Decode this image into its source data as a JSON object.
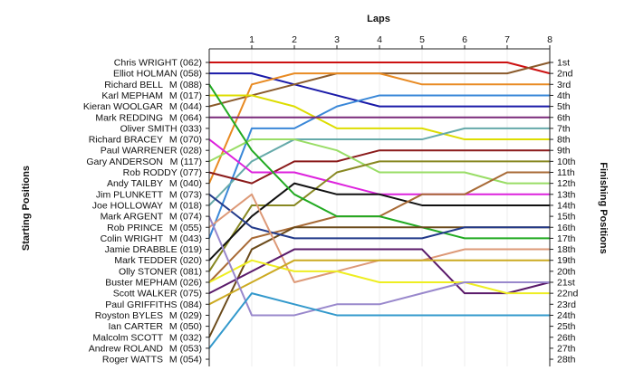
{
  "chart_data": {
    "type": "line",
    "title": "Laps",
    "xlabel": "Laps",
    "ylabel_left": "Starting Positions",
    "ylabel_right": "Finishing Positions",
    "x": [
      0,
      1,
      2,
      3,
      4,
      5,
      6,
      7,
      8
    ],
    "x_tick_labels": [
      "1",
      "2",
      "3",
      "4",
      "5",
      "6",
      "7",
      "8"
    ],
    "starting_labels": [
      [
        "Chris WRIGHT (062)",
        ""
      ],
      [
        "Elliot HOLMAN (058)",
        ""
      ],
      [
        "Richard BELL",
        "M (088)"
      ],
      [
        "Karl MEPHAM",
        "M (017)"
      ],
      [
        "Kieran WOOLGAR",
        "M (044)"
      ],
      [
        "Mark REDDING",
        "M (064)"
      ],
      [
        "Oliver SMITH (033)",
        ""
      ],
      [
        "Richard BRACEY",
        "M (070)"
      ],
      [
        "Paul WARRENER (028)",
        ""
      ],
      [
        "Gary ANDERSON",
        "M (117)"
      ],
      [
        "Rob RODDY (077)",
        ""
      ],
      [
        "Andy TAILBY",
        "M (040)"
      ],
      [
        "Jim PLUNKETT",
        "M (073)"
      ],
      [
        "Joe HOLLOWAY",
        "M (018)"
      ],
      [
        "Mark ARGENT",
        "M (074)"
      ],
      [
        "Rob PRINCE",
        "M (055)"
      ],
      [
        "Colin WRIGHT",
        "M (043)"
      ],
      [
        "Jamie DRABBLE (019)",
        ""
      ],
      [
        "Mark TEDDER (020)",
        ""
      ],
      [
        "Olly STONER (081)",
        ""
      ],
      [
        "Buster MEPHAM (026)",
        ""
      ],
      [
        "Scott WALKER (075)",
        ""
      ],
      [
        "Paul GRIFFITHS (084)",
        ""
      ],
      [
        "Royston BYLES",
        "M (029)"
      ],
      [
        "Ian CARTER",
        "M (050)"
      ],
      [
        "Malcolm SCOTT",
        "M (032)"
      ],
      [
        "Andrew ROLAND",
        "M (053)"
      ],
      [
        "Roger WATTS",
        "M (054)"
      ]
    ],
    "finishing_labels": [
      "1st",
      "2nd",
      "3rd",
      "4th",
      "5th",
      "6th",
      "7th",
      "8th",
      "9th",
      "10th",
      "11th",
      "12th",
      "13th",
      "14th",
      "15th",
      "16th",
      "17th",
      "18th",
      "19th",
      "20th",
      "21st",
      "22nd",
      "23rd",
      "24th",
      "25th",
      "26th",
      "27th",
      "28th"
    ],
    "series": [
      {
        "color": "#cc1111",
        "values": [
          1,
          1,
          1,
          1,
          1,
          1,
          1,
          1,
          2
        ]
      },
      {
        "color": "#1a1aa8",
        "values": [
          2,
          2,
          3,
          4,
          5,
          5,
          5,
          5,
          5
        ]
      },
      {
        "color": "#8a5a2b",
        "values": [
          5,
          4,
          3,
          2,
          2,
          2,
          2,
          2,
          1
        ]
      },
      {
        "color": "#e88a22",
        "values": [
          12,
          3,
          2,
          2,
          2,
          3,
          3,
          3,
          3
        ]
      },
      {
        "color": "#dddd00",
        "values": [
          4,
          4,
          5,
          7,
          7,
          7,
          8,
          8,
          8
        ]
      },
      {
        "color": "#3a88d8",
        "values": [
          17,
          7,
          7,
          5,
          4,
          4,
          4,
          4,
          4
        ]
      },
      {
        "color": "#7a2a7a",
        "values": [
          6,
          6,
          6,
          6,
          6,
          6,
          6,
          6,
          6
        ]
      },
      {
        "color": "#66aaaa",
        "values": [
          14,
          10,
          8,
          8,
          8,
          8,
          7,
          7,
          7
        ]
      },
      {
        "color": "#8a1a1a",
        "values": [
          11,
          12,
          10,
          10,
          9,
          9,
          9,
          9,
          9
        ]
      },
      {
        "color": "#99dd66",
        "values": [
          10,
          8,
          8,
          9,
          11,
          11,
          11,
          12,
          12
        ]
      },
      {
        "color": "#dd22dd",
        "values": [
          8,
          11,
          11,
          12,
          13,
          13,
          13,
          13,
          13
        ]
      },
      {
        "color": "#888822",
        "values": [
          20,
          14,
          14,
          11,
          10,
          10,
          10,
          10,
          10
        ]
      },
      {
        "color": "#111111",
        "values": [
          19,
          15,
          12,
          13,
          13,
          14,
          14,
          14,
          14
        ]
      },
      {
        "color": "#a86a36",
        "values": [
          21,
          17,
          16,
          15,
          15,
          13,
          13,
          11,
          11
        ]
      },
      {
        "color": "#22aa22",
        "values": [
          3,
          9,
          13,
          15,
          15,
          16,
          17,
          17,
          17
        ]
      },
      {
        "color": "#6a4a1a",
        "values": [
          26,
          18,
          16,
          16,
          16,
          16,
          16,
          16,
          16
        ]
      },
      {
        "color": "#223a8a",
        "values": [
          13,
          16,
          17,
          17,
          17,
          17,
          16,
          16,
          16
        ]
      },
      {
        "color": "#dd9977",
        "values": [
          16,
          13,
          21,
          20,
          19,
          19,
          18,
          18,
          18
        ]
      },
      {
        "color": "#5a1a6a",
        "values": [
          22,
          20,
          18,
          18,
          18,
          18,
          22,
          22,
          21
        ]
      },
      {
        "color": "#eeee22",
        "values": [
          21,
          19,
          20,
          20,
          21,
          21,
          21,
          22,
          22
        ]
      },
      {
        "color": "#ccaa22",
        "values": [
          23,
          21,
          19,
          19,
          19,
          19,
          19,
          19,
          19
        ]
      },
      {
        "color": "#9988cc",
        "values": [
          15,
          24,
          24,
          23,
          23,
          22,
          21,
          21,
          21
        ]
      },
      {
        "color": "#3399cc",
        "values": [
          27,
          22,
          23,
          24,
          24,
          24,
          24,
          24,
          24
        ]
      }
    ]
  }
}
